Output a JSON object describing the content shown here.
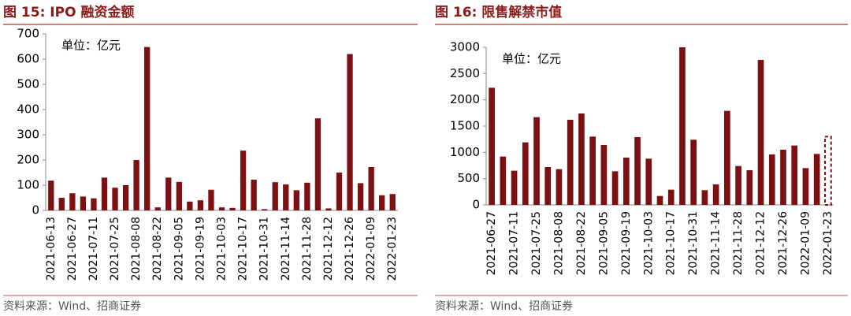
{
  "chart_data": [
    {
      "type": "bar",
      "title": "图 15:  IPO 融资金额",
      "annotation": "单位：亿元",
      "source": "资料来源：Wind、招商证券",
      "categories": [
        "2021-06-13",
        null,
        "2021-06-27",
        null,
        "2021-07-11",
        null,
        "2021-07-25",
        null,
        "2021-08-08",
        null,
        "2021-08-22",
        null,
        "2021-09-05",
        null,
        "2021-09-19",
        null,
        "2021-10-03",
        null,
        "2021-10-17",
        null,
        "2021-10-31",
        null,
        "2021-11-14",
        null,
        "2021-11-28",
        null,
        "2021-12-12",
        null,
        "2021-12-26",
        null,
        "2022-01-09",
        null,
        "2022-01-23"
      ],
      "values": [
        118,
        50,
        68,
        55,
        48,
        130,
        90,
        100,
        200,
        648,
        12,
        130,
        113,
        35,
        40,
        82,
        12,
        10,
        237,
        122,
        5,
        112,
        103,
        80,
        110,
        365,
        8,
        150,
        620,
        108,
        172,
        60,
        65
      ],
      "color": "#7b1113",
      "ylim": [
        0,
        700
      ],
      "yticks": [
        0,
        100,
        200,
        300,
        400,
        500,
        600,
        700
      ]
    },
    {
      "type": "bar",
      "title": "图 16:  限售解禁市值",
      "annotation": "单位：亿元",
      "source": "资料来源：Wind、招商证券",
      "categories": [
        "2021-06-27",
        null,
        "2021-07-11",
        null,
        "2021-07-25",
        null,
        "2021-08-08",
        null,
        "2021-08-22",
        null,
        "2021-09-05",
        null,
        "2021-09-19",
        null,
        "2021-10-03",
        null,
        "2021-10-17",
        null,
        "2021-10-31",
        null,
        "2021-11-14",
        null,
        "2021-11-28",
        null,
        "2021-12-12",
        null,
        "2021-12-26",
        null,
        "2022-01-09",
        null,
        "2022-01-23"
      ],
      "values": [
        2230,
        920,
        650,
        1190,
        1670,
        720,
        680,
        1620,
        1740,
        1300,
        1140,
        640,
        900,
        1290,
        880,
        170,
        290,
        3000,
        1240,
        280,
        390,
        1790,
        740,
        660,
        2760,
        960,
        1050,
        1130,
        700,
        970,
        1300
      ],
      "color": "#7b1113",
      "dashed": [
        30
      ],
      "ylim": [
        0,
        3000
      ],
      "yticks": [
        0,
        500,
        1000,
        1500,
        2000,
        2500,
        3000
      ]
    }
  ]
}
